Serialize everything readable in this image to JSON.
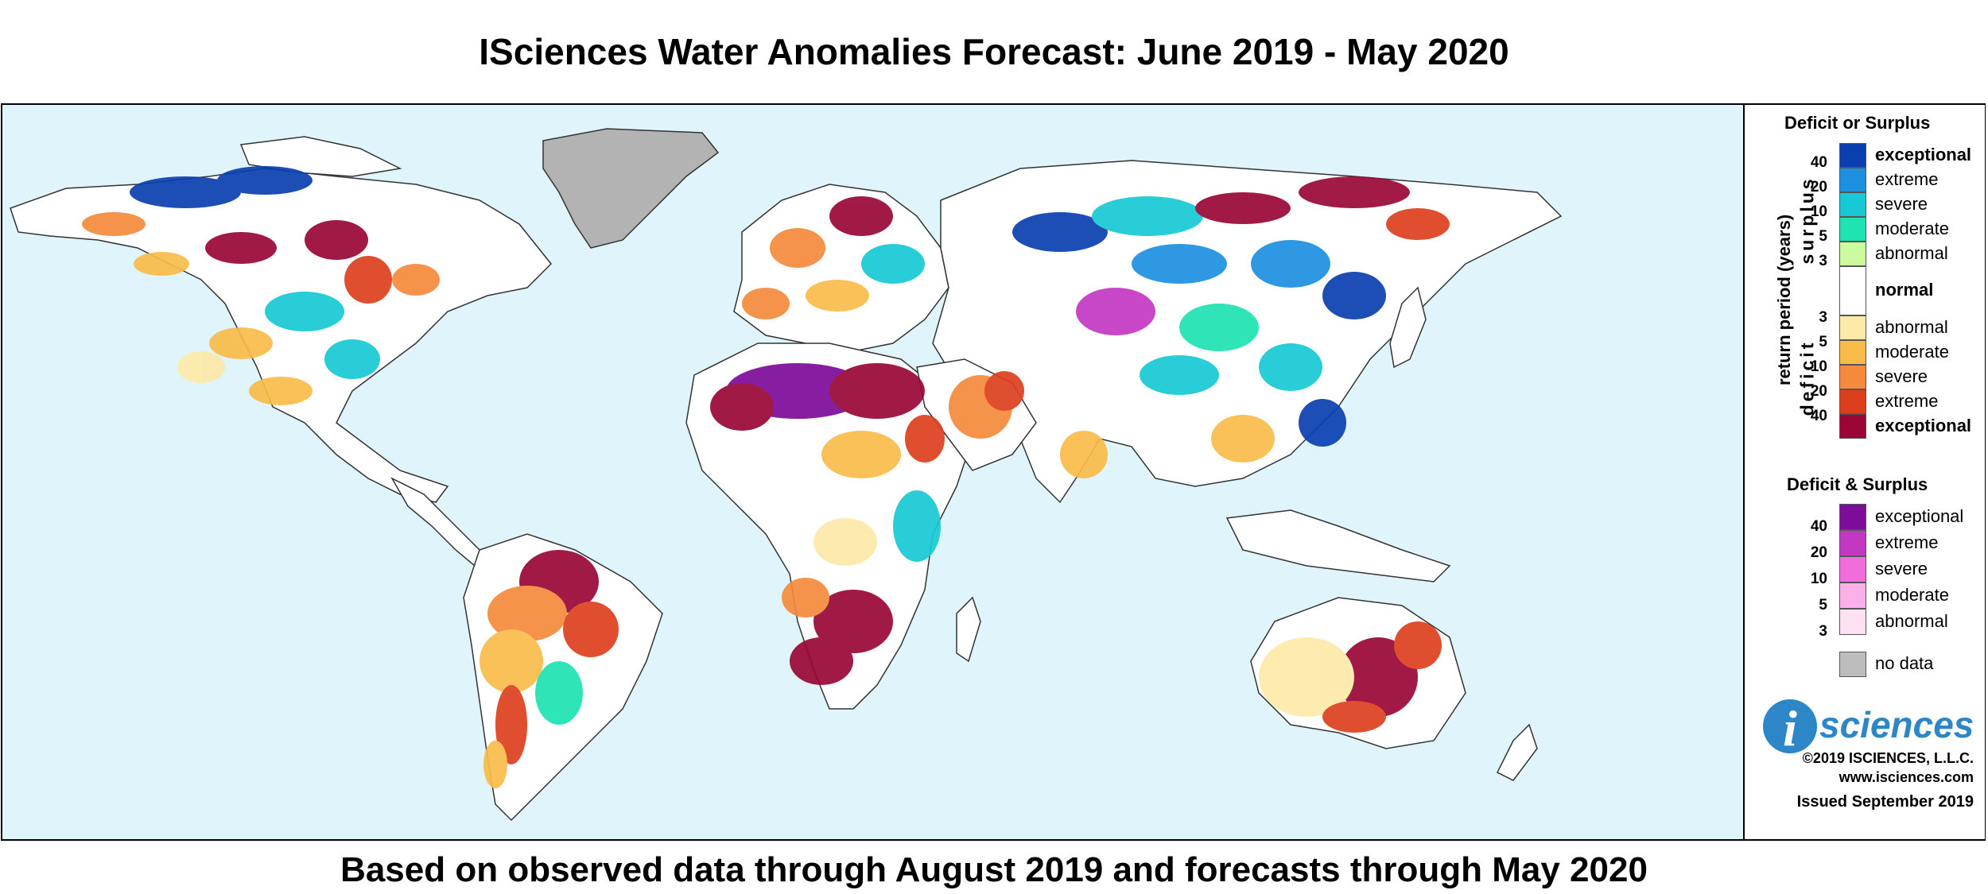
{
  "title": "ISciences Water Anomalies Forecast: June 2019 - May 2020",
  "subtitle": "Based on observed data through August 2019 and forecasts through May 2020",
  "legend": {
    "deficit_or_surplus": {
      "heading": "Deficit or Surplus",
      "axis_label": "return period (years)",
      "surplus_label": "surplus",
      "deficit_label": "deficit",
      "surplus": [
        {
          "label": "exceptional",
          "color": "#0a3fb0"
        },
        {
          "label": "extreme",
          "color": "#1e90e0"
        },
        {
          "label": "severe",
          "color": "#17c9d4"
        },
        {
          "label": "moderate",
          "color": "#1ee3b2"
        },
        {
          "label": "abnormal",
          "color": "#ccfa9e"
        }
      ],
      "normal": {
        "label": "normal",
        "color": "#ffffff"
      },
      "deficit": [
        {
          "label": "abnormal",
          "color": "#fde9a8"
        },
        {
          "label": "moderate",
          "color": "#f9bc4a"
        },
        {
          "label": "severe",
          "color": "#f58a3c"
        },
        {
          "label": "extreme",
          "color": "#dd3f1d"
        },
        {
          "label": "exceptional",
          "color": "#9a0736"
        }
      ],
      "surplus_ticks": [
        "40",
        "20",
        "10",
        "5",
        "3"
      ],
      "deficit_ticks": [
        "3",
        "5",
        "10",
        "20",
        "40"
      ]
    },
    "deficit_and_surplus": {
      "heading": "Deficit & Surplus",
      "items": [
        {
          "label": "exceptional",
          "color": "#7d0c9a"
        },
        {
          "label": "extreme",
          "color": "#c338c2"
        },
        {
          "label": "severe",
          "color": "#f06ddb"
        },
        {
          "label": "moderate",
          "color": "#fbb0ea"
        },
        {
          "label": "abnormal",
          "color": "#fde1f2"
        }
      ],
      "ticks": [
        "40",
        "20",
        "10",
        "5",
        "3"
      ]
    },
    "no_data": {
      "label": "no data",
      "color": "#bdbdbd"
    }
  },
  "branding": {
    "logo_letter": "i",
    "logo_text": "sciences",
    "copyright": "©2019 ISCIENCES, L.L.C.",
    "website": "www.isciences.com",
    "issued": "Issued September 2019"
  },
  "colors": {
    "ocean": "#dff4fb",
    "land_normal": "#ffffff",
    "coastline": "#333333",
    "logo_blue": "#2d86c8"
  }
}
